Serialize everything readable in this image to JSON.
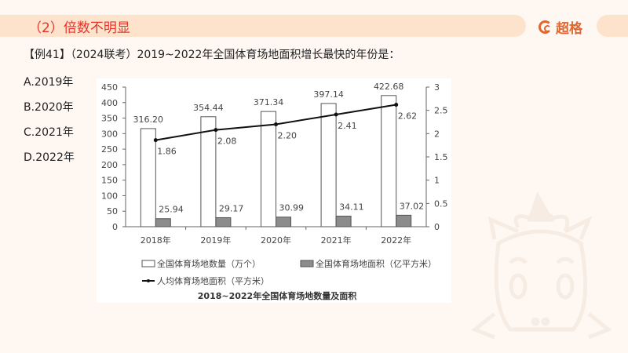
{
  "header": {
    "title": "（2）倍数不明显",
    "brand_name": "超格",
    "accent_color": "#e8332a",
    "brand_color": "#e2662e",
    "band_color": "#fde3cc"
  },
  "question": {
    "text": "【例41】（2024联考）2019~2022年全国体育场地面积增长最快的年份是："
  },
  "options": [
    {
      "label": "A.2019年"
    },
    {
      "label": "B.2020年"
    },
    {
      "label": "C.2021年"
    },
    {
      "label": "D.2022年"
    }
  ],
  "chart_data": {
    "type": "bar",
    "title": "2018~2022年全国体育场地数量及面积",
    "categories": [
      "2018年",
      "2019年",
      "2020年",
      "2021年",
      "2022年"
    ],
    "series": [
      {
        "name": "全国体育场地数量（万个）",
        "type": "bar",
        "axis": "left",
        "color": "#ffffff",
        "values": [
          316.2,
          354.44,
          371.34,
          397.14,
          422.68
        ]
      },
      {
        "name": "全国体育场地面积（亿平方米）",
        "type": "bar",
        "axis": "left",
        "color": "#8c8c8c",
        "values": [
          25.94,
          29.17,
          30.99,
          34.11,
          37.02
        ]
      },
      {
        "name": "人均体育场地面积（平方米）",
        "type": "line",
        "axis": "right",
        "color": "#111111",
        "values": [
          1.86,
          2.08,
          2.2,
          2.41,
          2.62
        ]
      }
    ],
    "left_axis": {
      "ticks": [
        "0",
        "50",
        "100",
        "150",
        "200",
        "250",
        "300",
        "350",
        "400",
        "450"
      ],
      "ylim": [
        0,
        450
      ]
    },
    "right_axis": {
      "ticks": [
        "0",
        "0.5",
        "1",
        "1.5",
        "2",
        "2.5",
        "3"
      ],
      "ylim": [
        0,
        3
      ]
    },
    "xlabel": "",
    "ylabel": "",
    "grid": false,
    "legend_position": "bottom"
  }
}
